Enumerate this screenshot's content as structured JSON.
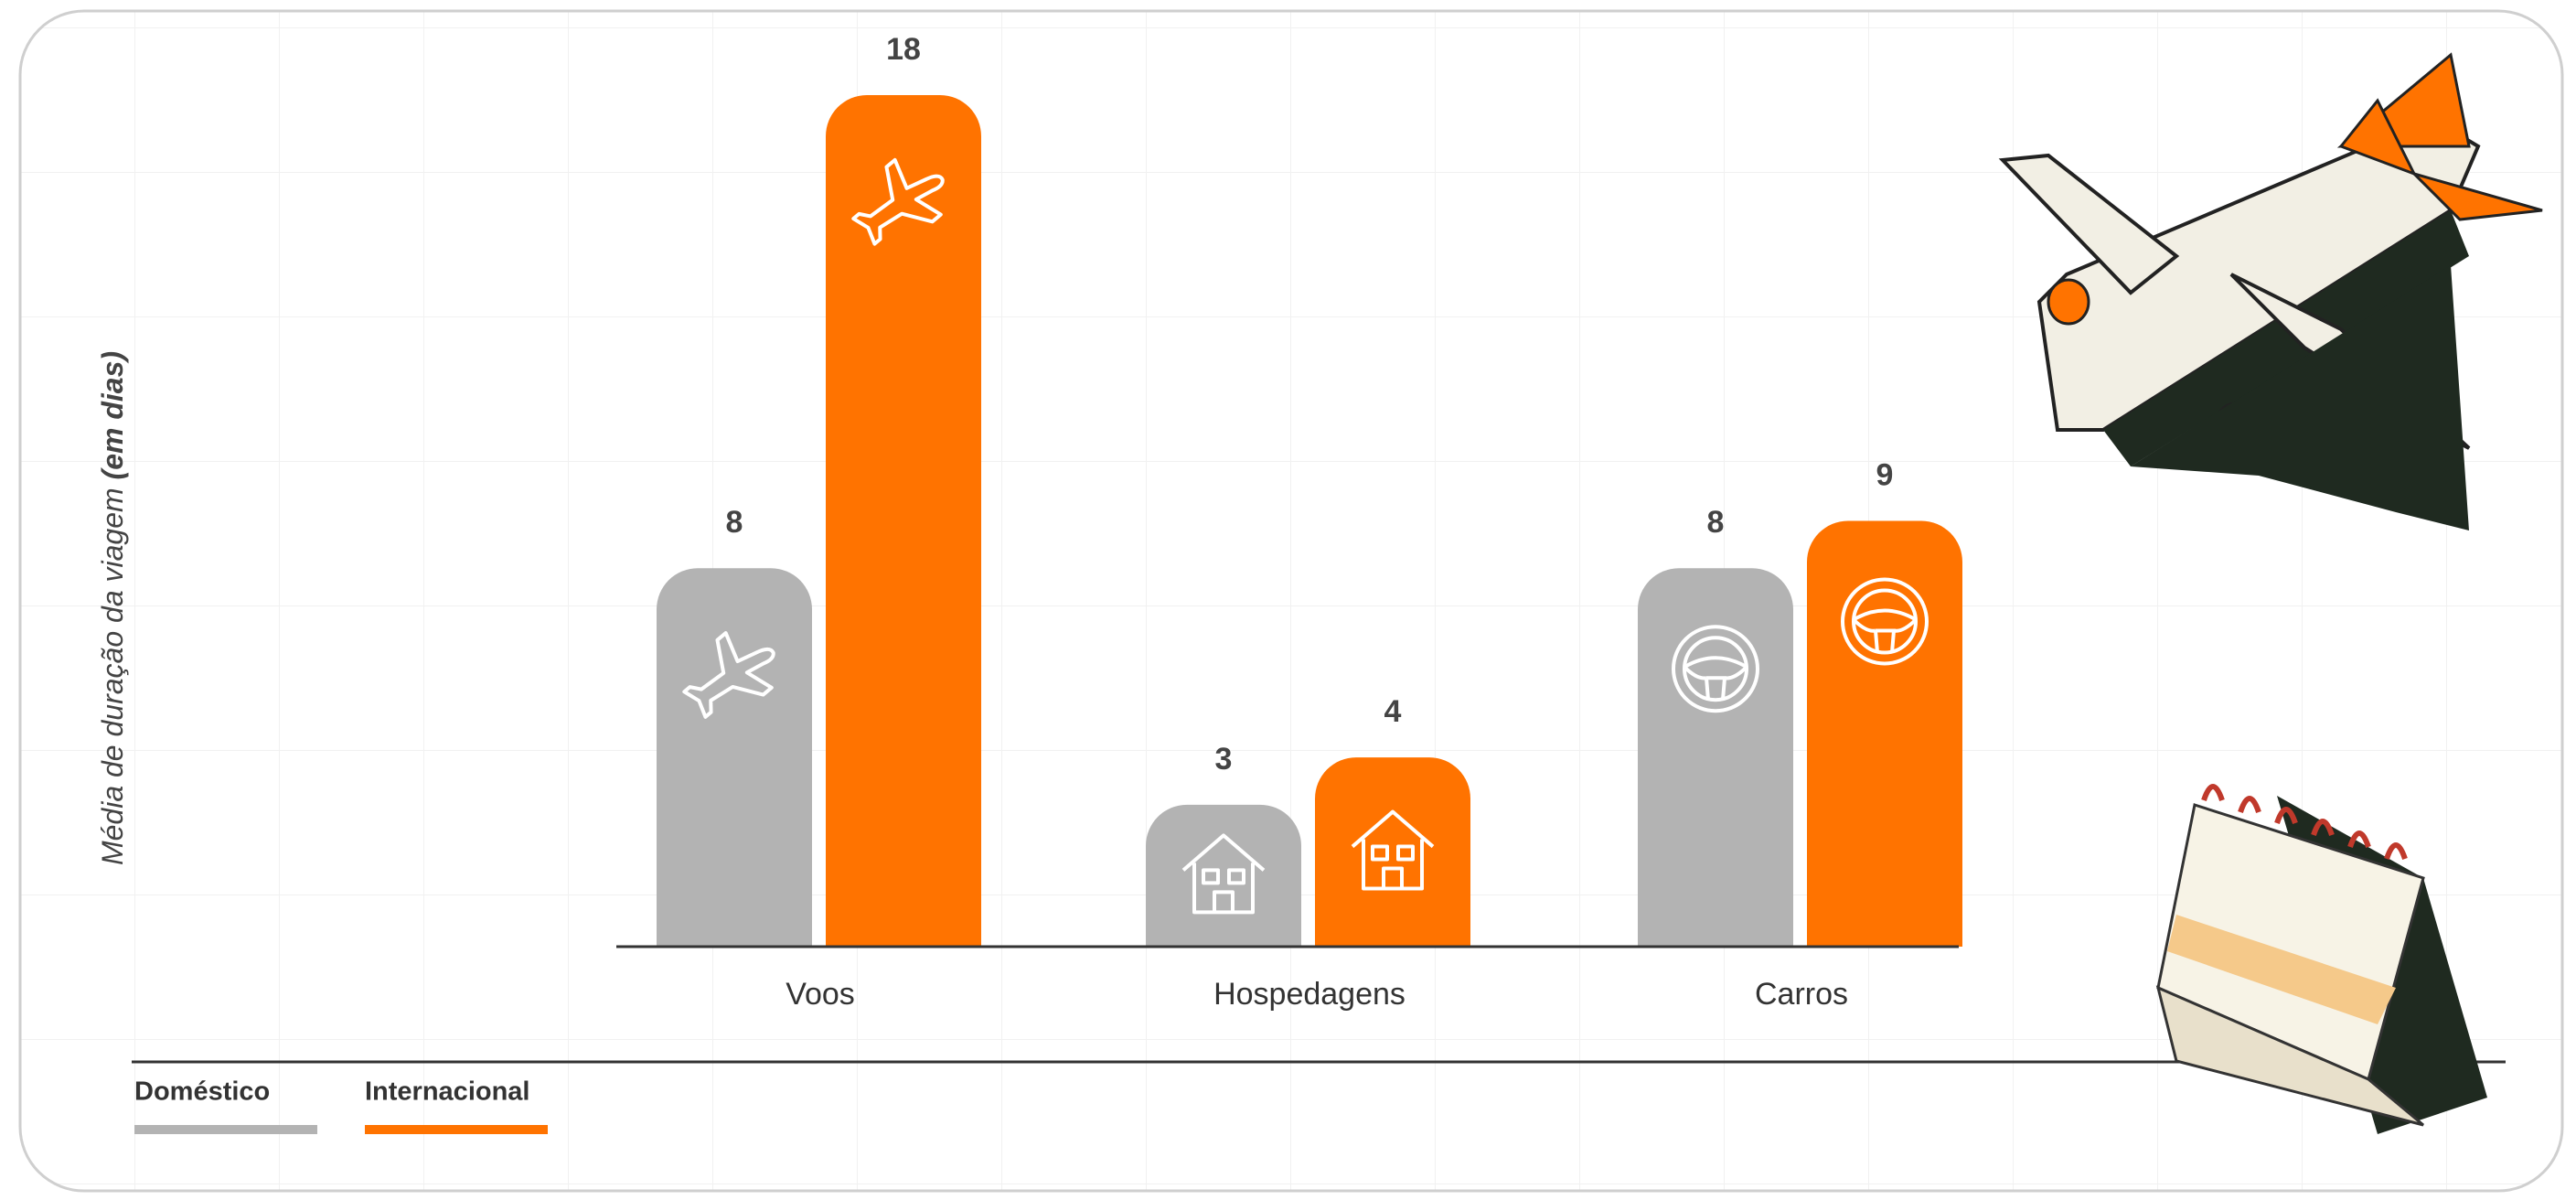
{
  "chart_data": {
    "type": "bar",
    "y_label": {
      "text": "Média de duração da viagem",
      "emphasis": "(em dias)"
    },
    "categories": [
      "Voos",
      "Hospedagens",
      "Carros"
    ],
    "series": [
      {
        "name": "Doméstico",
        "color": "#b3b3b3",
        "values": [
          8,
          3,
          8
        ]
      },
      {
        "name": "Internacional",
        "color": "#ff7300",
        "values": [
          18,
          4,
          9
        ]
      }
    ],
    "ylim": [
      0,
      18
    ]
  }
}
